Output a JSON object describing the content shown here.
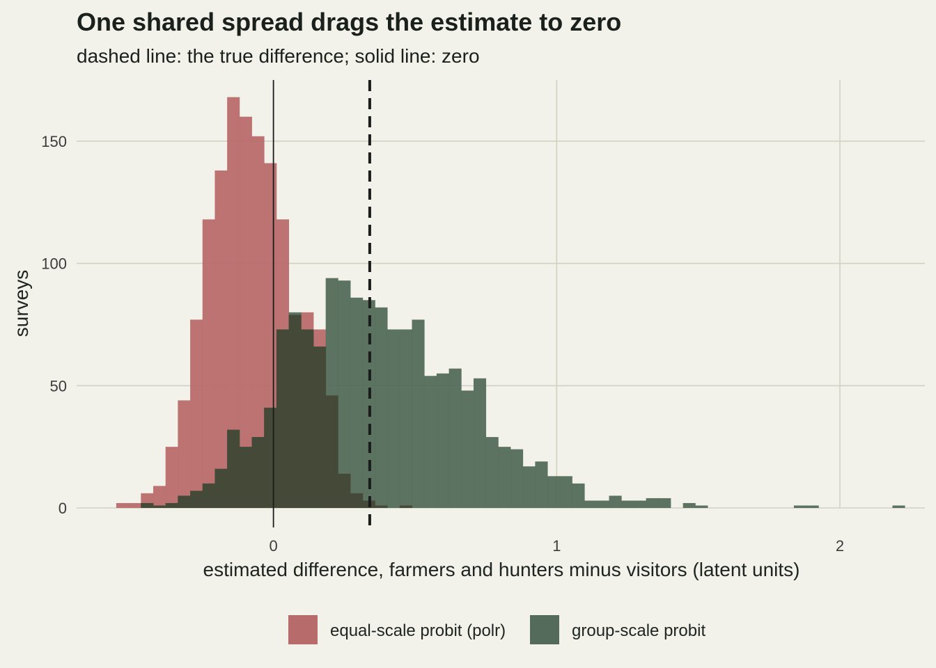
{
  "chart_data": {
    "type": "histogram",
    "title": "One shared spread drags the estimate to zero",
    "subtitle": "dashed line: the true difference; solid line: zero",
    "xlabel": "estimated difference, farmers and hunters minus visitors (latent units)",
    "ylabel": "surveys",
    "xlim": [
      -0.695,
      2.3
    ],
    "ylim": [
      0,
      175
    ],
    "x_ticks": [
      0,
      1,
      2
    ],
    "y_ticks": [
      0,
      50,
      100,
      150
    ],
    "grid": true,
    "legend_position": "bottom",
    "bin_width": 0.0435,
    "reference_lines": [
      {
        "x": 0,
        "style": "solid"
      },
      {
        "x": 0.34,
        "style": "dashed"
      }
    ],
    "series": [
      {
        "name": "equal-scale probit (polr)",
        "color": "#b86b6b",
        "bin_start": -0.555,
        "counts": [
          2,
          2,
          6,
          9,
          25,
          44,
          77,
          118,
          138,
          168,
          160,
          152,
          141,
          118,
          79,
          80,
          73,
          46,
          14,
          6,
          3,
          1,
          0,
          1
        ]
      },
      {
        "name": "group-scale probit",
        "color": "#546b5b",
        "bin_start": -0.468,
        "counts": [
          2,
          1,
          2,
          5,
          7,
          10,
          16,
          32,
          25,
          29,
          41,
          73,
          80,
          73,
          66,
          94,
          93,
          86,
          85,
          82,
          73,
          73,
          77,
          54,
          55,
          57,
          48,
          53,
          29,
          25,
          24,
          17,
          19,
          13,
          13,
          10,
          3,
          3,
          5,
          3,
          3,
          4,
          4,
          0,
          2,
          1,
          0,
          0,
          0,
          0,
          0,
          0,
          0,
          1,
          1,
          0,
          0,
          0,
          0,
          0,
          0,
          1
        ]
      }
    ]
  }
}
